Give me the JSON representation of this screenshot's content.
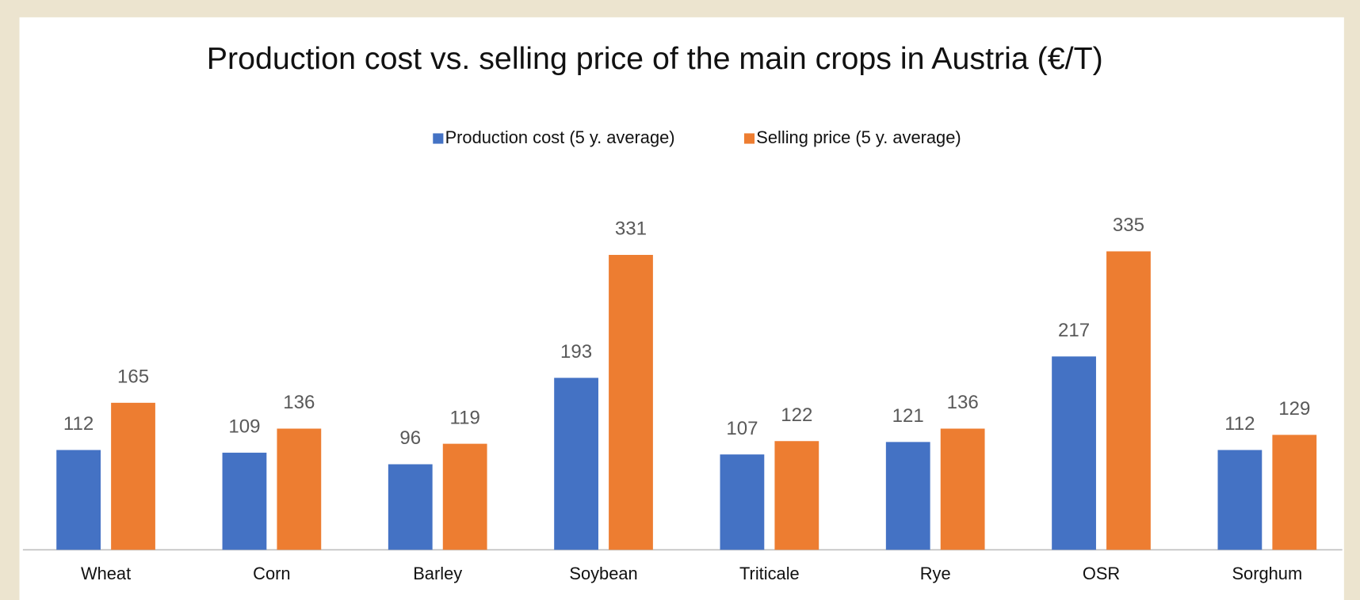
{
  "chart_data": {
    "type": "bar",
    "title": "Production cost vs. selling price of the main crops in Austria (€/T)",
    "categories": [
      "Wheat",
      "Corn",
      "Barley",
      "Soybean",
      "Triticale",
      "Rye",
      "OSR",
      "Sorghum"
    ],
    "series": [
      {
        "name": "Production cost (5 y. average)",
        "color": "#4472c4",
        "values": [
          112,
          109,
          96,
          193,
          107,
          121,
          217,
          112
        ]
      },
      {
        "name": "Selling price (5 y. average)",
        "color": "#ed7d31",
        "values": [
          165,
          136,
          119,
          331,
          122,
          136,
          335,
          129
        ]
      }
    ],
    "ylim": [
      0,
      345
    ],
    "legend": "top"
  }
}
